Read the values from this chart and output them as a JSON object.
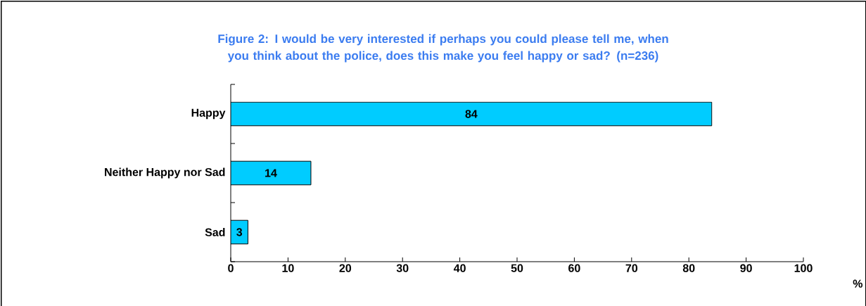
{
  "chart_data": {
    "type": "bar",
    "orientation": "horizontal",
    "title": "Figure 2: I would be very interested if perhaps you could please tell me, when you think about the police, does this make you feel happy or sad?    (n=236)",
    "categories": [
      "Happy",
      "Neither Happy nor Sad",
      "Sad"
    ],
    "values": [
      84,
      14,
      3
    ],
    "color": "#00ccff",
    "data_labels": true,
    "xlabel": "%",
    "xlim": [
      0,
      100
    ],
    "xticks": [
      0,
      10,
      20,
      30,
      40,
      50,
      60,
      70,
      80,
      90,
      100
    ],
    "grid": false
  }
}
